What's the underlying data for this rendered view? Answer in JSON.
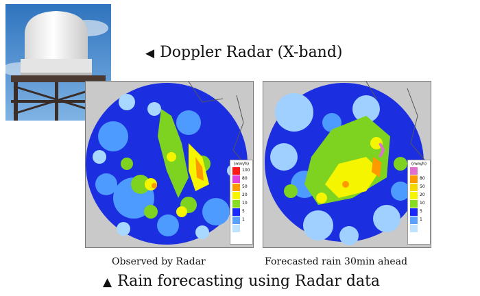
{
  "header": {
    "title": "Doppler Radar (X-band)",
    "title_arrow": "◀"
  },
  "photo": {
    "icon": "radar-dome-photo",
    "sky_color": "#3f84c8",
    "dome_color": "#f2f2f2"
  },
  "maps": [
    {
      "caption": "Observed by Radar",
      "legend": {
        "unit": "(mm/h)",
        "entries": [
          {
            "label": "100",
            "color": "#ff1a1a"
          },
          {
            "label": "80",
            "color": "#e040e0"
          },
          {
            "label": "50",
            "color": "#ff9900"
          },
          {
            "label": "20",
            "color": "#f5f500"
          },
          {
            "label": "10",
            "color": "#88dd22"
          },
          {
            "label": "5",
            "color": "#1a28ff"
          },
          {
            "label": "1",
            "color": "#5aa0ff"
          },
          {
            "label": "",
            "color": "#bfe2ff"
          }
        ]
      }
    },
    {
      "caption": "Forecasted rain 30min ahead",
      "legend": {
        "unit": "(mm/h)",
        "entries": [
          {
            "label": "",
            "color": "#e070d0"
          },
          {
            "label": "80",
            "color": "#ff9900"
          },
          {
            "label": "50",
            "color": "#f5d800"
          },
          {
            "label": "20",
            "color": "#f5f500"
          },
          {
            "label": "10",
            "color": "#88dd22"
          },
          {
            "label": "5",
            "color": "#1a28ff"
          },
          {
            "label": "1",
            "color": "#5aa0ff"
          },
          {
            "label": "",
            "color": "#bfe2ff"
          }
        ]
      }
    }
  ],
  "footer": {
    "title": "Rain forecasting using Radar data",
    "title_arrow": "▲"
  }
}
